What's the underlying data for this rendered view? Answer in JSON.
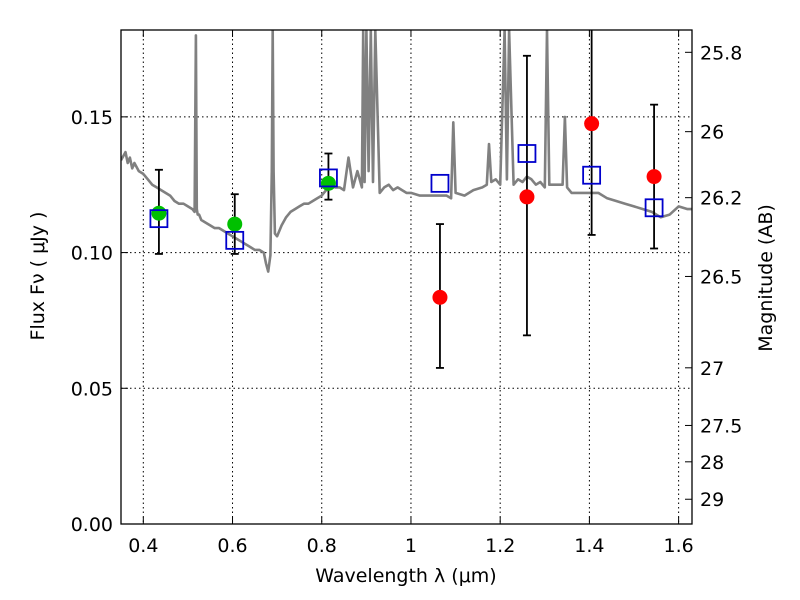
{
  "chart_data": {
    "type": "scatter",
    "title": "",
    "xlabel": "Wavelength  λ (μm)",
    "ylabel_left": "Flux  Fν  ( μJy )",
    "ylabel_right": "Magnitude (AB)",
    "xlim": [
      0.35,
      1.63
    ],
    "ylim": [
      0.0,
      0.182
    ],
    "grid": true,
    "x_ticks": [
      0.4,
      0.6,
      0.8,
      1.0,
      1.2,
      1.4,
      1.6
    ],
    "x_tick_labels": [
      "0.4",
      "0.6",
      "0.8",
      "1",
      "1.2",
      "1.4",
      "1.6"
    ],
    "y_ticks": [
      0.0,
      0.05,
      0.1,
      0.15
    ],
    "y_tick_labels": [
      "0.00",
      "0.05",
      "0.10",
      "0.15"
    ],
    "right_ticks": [
      {
        "label": "25.8",
        "mag": 25.8
      },
      {
        "label": "26",
        "mag": 26.0
      },
      {
        "label": "26.2",
        "mag": 26.2
      },
      {
        "label": "26.5",
        "mag": 26.5
      },
      {
        "label": "27",
        "mag": 27.0
      },
      {
        "label": "27.5",
        "mag": 27.5
      },
      {
        "label": "28",
        "mag": 28.0
      },
      {
        "label": "29",
        "mag": 29.0
      }
    ],
    "colors": {
      "model": "#808080",
      "green": "#00c000",
      "red": "#ff0000",
      "blue": "#0000cc",
      "errorbar": "#000000"
    },
    "series": [
      {
        "name": "model-spectrum",
        "type": "line",
        "x": [
          0.35,
          0.36,
          0.365,
          0.37,
          0.375,
          0.38,
          0.39,
          0.4,
          0.41,
          0.42,
          0.43,
          0.44,
          0.45,
          0.46,
          0.47,
          0.48,
          0.49,
          0.5,
          0.51,
          0.515,
          0.518,
          0.52,
          0.522,
          0.525,
          0.53,
          0.54,
          0.55,
          0.56,
          0.57,
          0.58,
          0.59,
          0.6,
          0.61,
          0.62,
          0.63,
          0.64,
          0.65,
          0.66,
          0.67,
          0.675,
          0.68,
          0.685,
          0.688,
          0.69,
          0.692,
          0.695,
          0.7,
          0.71,
          0.72,
          0.73,
          0.74,
          0.75,
          0.76,
          0.77,
          0.78,
          0.79,
          0.8,
          0.81,
          0.82,
          0.83,
          0.84,
          0.85,
          0.86,
          0.87,
          0.88,
          0.89,
          0.893,
          0.896,
          0.9,
          0.905,
          0.91,
          0.915,
          0.92,
          0.93,
          0.94,
          0.95,
          0.96,
          0.97,
          0.98,
          0.99,
          1.0,
          1.02,
          1.04,
          1.06,
          1.08,
          1.09,
          1.095,
          1.1,
          1.12,
          1.14,
          1.16,
          1.17,
          1.175,
          1.18,
          1.19,
          1.2,
          1.21,
          1.215,
          1.22,
          1.23,
          1.24,
          1.25,
          1.26,
          1.27,
          1.28,
          1.29,
          1.3,
          1.305,
          1.31,
          1.32,
          1.34,
          1.345,
          1.35,
          1.36,
          1.38,
          1.4,
          1.42,
          1.44,
          1.46,
          1.48,
          1.5,
          1.52,
          1.54,
          1.56,
          1.58,
          1.6,
          1.62,
          1.63
        ],
        "y": [
          0.134,
          0.137,
          0.133,
          0.135,
          0.131,
          0.133,
          0.13,
          0.129,
          0.127,
          0.125,
          0.124,
          0.123,
          0.122,
          0.121,
          0.119,
          0.118,
          0.118,
          0.117,
          0.116,
          0.115,
          0.18,
          0.116,
          0.114,
          0.114,
          0.112,
          0.111,
          0.11,
          0.109,
          0.109,
          0.108,
          0.107,
          0.106,
          0.105,
          0.104,
          0.103,
          0.102,
          0.101,
          0.101,
          0.1,
          0.096,
          0.093,
          0.099,
          0.13,
          0.182,
          0.13,
          0.107,
          0.106,
          0.11,
          0.113,
          0.115,
          0.116,
          0.117,
          0.118,
          0.118,
          0.119,
          0.12,
          0.121,
          0.123,
          0.125,
          0.124,
          0.124,
          0.123,
          0.135,
          0.124,
          0.13,
          0.124,
          0.182,
          0.126,
          0.182,
          0.13,
          0.182,
          0.126,
          0.182,
          0.122,
          0.124,
          0.125,
          0.123,
          0.124,
          0.123,
          0.122,
          0.122,
          0.121,
          0.121,
          0.121,
          0.121,
          0.12,
          0.148,
          0.122,
          0.121,
          0.123,
          0.124,
          0.125,
          0.14,
          0.126,
          0.127,
          0.125,
          0.182,
          0.127,
          0.182,
          0.125,
          0.127,
          0.126,
          0.128,
          0.127,
          0.125,
          0.126,
          0.124,
          0.182,
          0.125,
          0.125,
          0.125,
          0.15,
          0.124,
          0.122,
          0.122,
          0.122,
          0.122,
          0.12,
          0.119,
          0.118,
          0.117,
          0.116,
          0.115,
          0.113,
          0.114,
          0.117,
          0.116,
          0.116
        ]
      },
      {
        "name": "green-photometry",
        "type": "scatter",
        "x": [
          0.435,
          0.605,
          0.815
        ],
        "y": [
          0.1145,
          0.1105,
          0.1255
        ]
      },
      {
        "name": "red-photometry",
        "type": "scatter",
        "x": [
          1.065,
          1.26,
          1.405,
          1.545
        ],
        "y": [
          0.0835,
          0.1205,
          0.1475,
          0.128
        ]
      },
      {
        "name": "model-bandpass-squares",
        "type": "scatter",
        "x": [
          0.435,
          0.605,
          0.815,
          1.065,
          1.26,
          1.405,
          1.545
        ],
        "y": [
          0.1125,
          0.1045,
          0.1275,
          0.1255,
          0.1365,
          0.1285,
          0.1165
        ]
      },
      {
        "name": "error-bars",
        "type": "errorbar",
        "x": [
          0.435,
          0.605,
          0.815,
          1.065,
          1.26,
          1.405,
          1.545
        ],
        "low": [
          0.0995,
          0.0995,
          0.1195,
          0.0575,
          0.0695,
          0.1065,
          0.1015
        ],
        "high": [
          0.1305,
          0.1215,
          0.1365,
          0.1105,
          0.1725,
          0.1825,
          0.1545
        ]
      }
    ]
  }
}
